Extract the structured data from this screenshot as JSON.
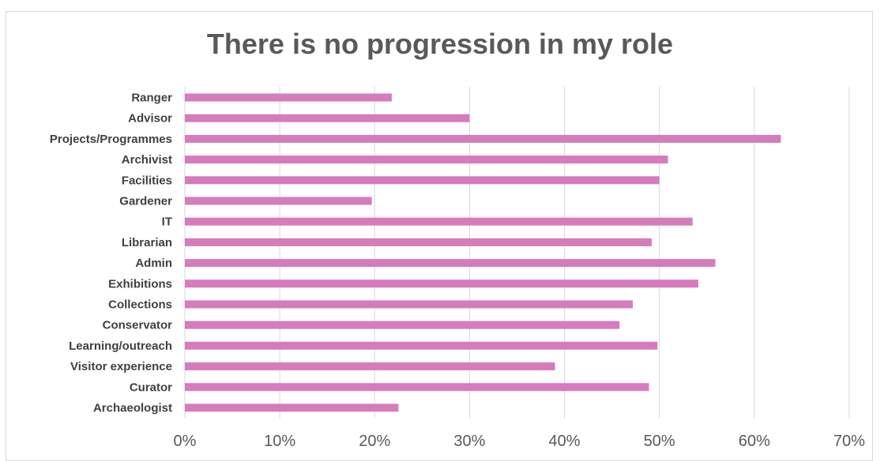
{
  "chart_data": {
    "type": "bar",
    "orientation": "horizontal",
    "title": "There is no progression in my role",
    "xlabel": "",
    "ylabel": "",
    "categories": [
      "Ranger",
      "Advisor",
      "Projects/Programmes",
      "Archivist",
      "Facilities",
      "Gardener",
      "IT",
      "Librarian",
      "Admin",
      "Exhibitions",
      "Collections",
      "Conservator",
      "Learning/outreach",
      "Visitor experience",
      "Curator",
      "Archaeologist"
    ],
    "values": [
      21.8,
      30.0,
      62.8,
      50.9,
      50.0,
      19.7,
      53.5,
      49.2,
      55.9,
      54.1,
      47.2,
      45.8,
      49.8,
      39.0,
      48.9,
      22.5
    ],
    "xlim": [
      0,
      70
    ],
    "xticks": [
      "0%",
      "10%",
      "20%",
      "30%",
      "40%",
      "50%",
      "60%",
      "70%"
    ],
    "grid": true,
    "legend": "none",
    "bar_color": "#d67bbb",
    "grid_color": "#d9d9d9"
  }
}
